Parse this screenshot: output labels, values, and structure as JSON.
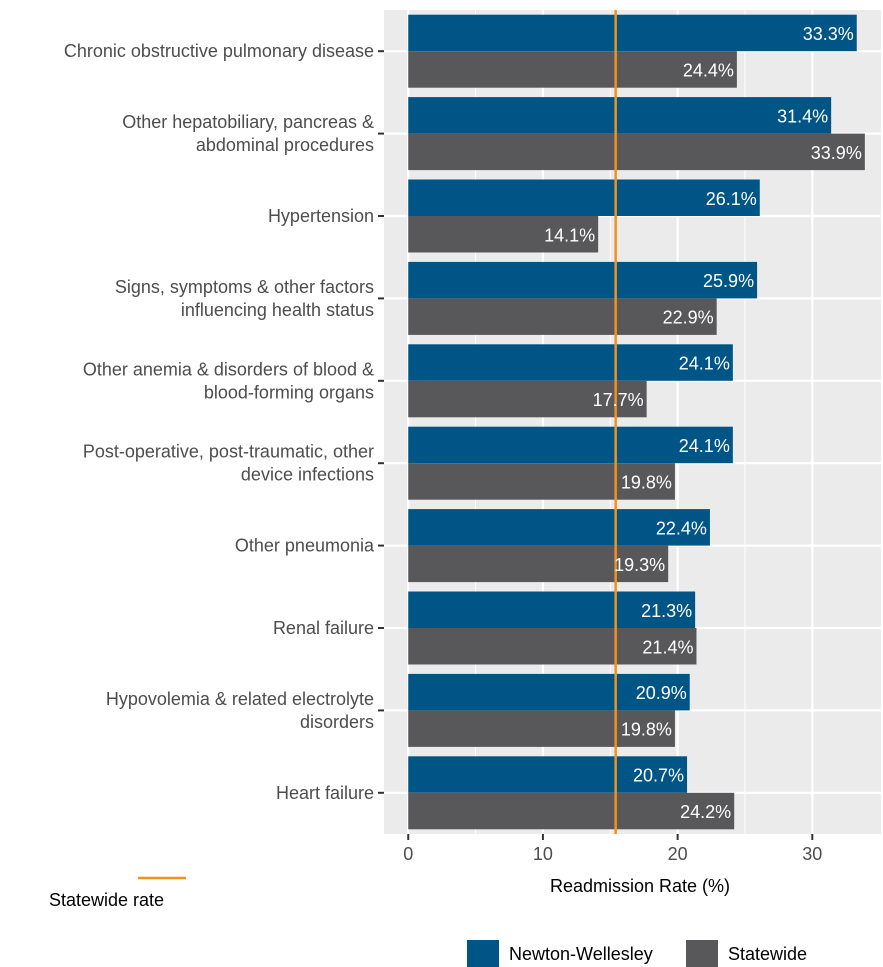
{
  "chart_data": {
    "type": "bar",
    "orientation": "horizontal",
    "categories": [
      [
        "Chronic obstructive pulmonary disease"
      ],
      [
        "Other hepatobiliary, pancreas &",
        "abdominal procedures"
      ],
      [
        "Hypertension"
      ],
      [
        "Signs, symptoms & other factors",
        "influencing health status"
      ],
      [
        "Other anemia & disorders of blood &",
        "blood-forming organs"
      ],
      [
        "Post-operative, post-traumatic, other",
        "device infections"
      ],
      [
        "Other pneumonia"
      ],
      [
        "Renal failure"
      ],
      [
        "Hypovolemia & related electrolyte",
        "disorders"
      ],
      [
        "Heart failure"
      ]
    ],
    "series": [
      {
        "name": "Newton-Wellesley",
        "color": "#005587",
        "values": [
          33.3,
          31.4,
          26.1,
          25.9,
          24.1,
          24.1,
          22.4,
          21.3,
          20.9,
          20.7
        ],
        "labels": [
          "33.3%",
          "31.4%",
          "26.1%",
          "25.9%",
          "24.1%",
          "24.1%",
          "22.4%",
          "21.3%",
          "20.9%",
          "20.7%"
        ]
      },
      {
        "name": "Statewide",
        "color": "#58585b",
        "values": [
          24.4,
          33.9,
          14.1,
          22.9,
          17.7,
          19.8,
          19.3,
          21.4,
          19.8,
          24.2
        ],
        "labels": [
          "24.4%",
          "33.9%",
          "14.1%",
          "22.9%",
          "17.7%",
          "19.8%",
          "19.3%",
          "21.4%",
          "19.8%",
          "24.2%"
        ]
      }
    ],
    "reference_line": {
      "value": 15.4,
      "label": "Statewide rate",
      "color": "#f0921e"
    },
    "xlabel": "Readmission Rate (%)",
    "ylabel": "",
    "xlim": [
      -1.8,
      35.1
    ],
    "xticks": [
      0,
      10,
      20,
      30
    ],
    "xtick_labels": [
      "0",
      "10",
      "20",
      "30"
    ],
    "grid": true,
    "panel_background": "#ebebeb",
    "legend_position": "bottom"
  }
}
